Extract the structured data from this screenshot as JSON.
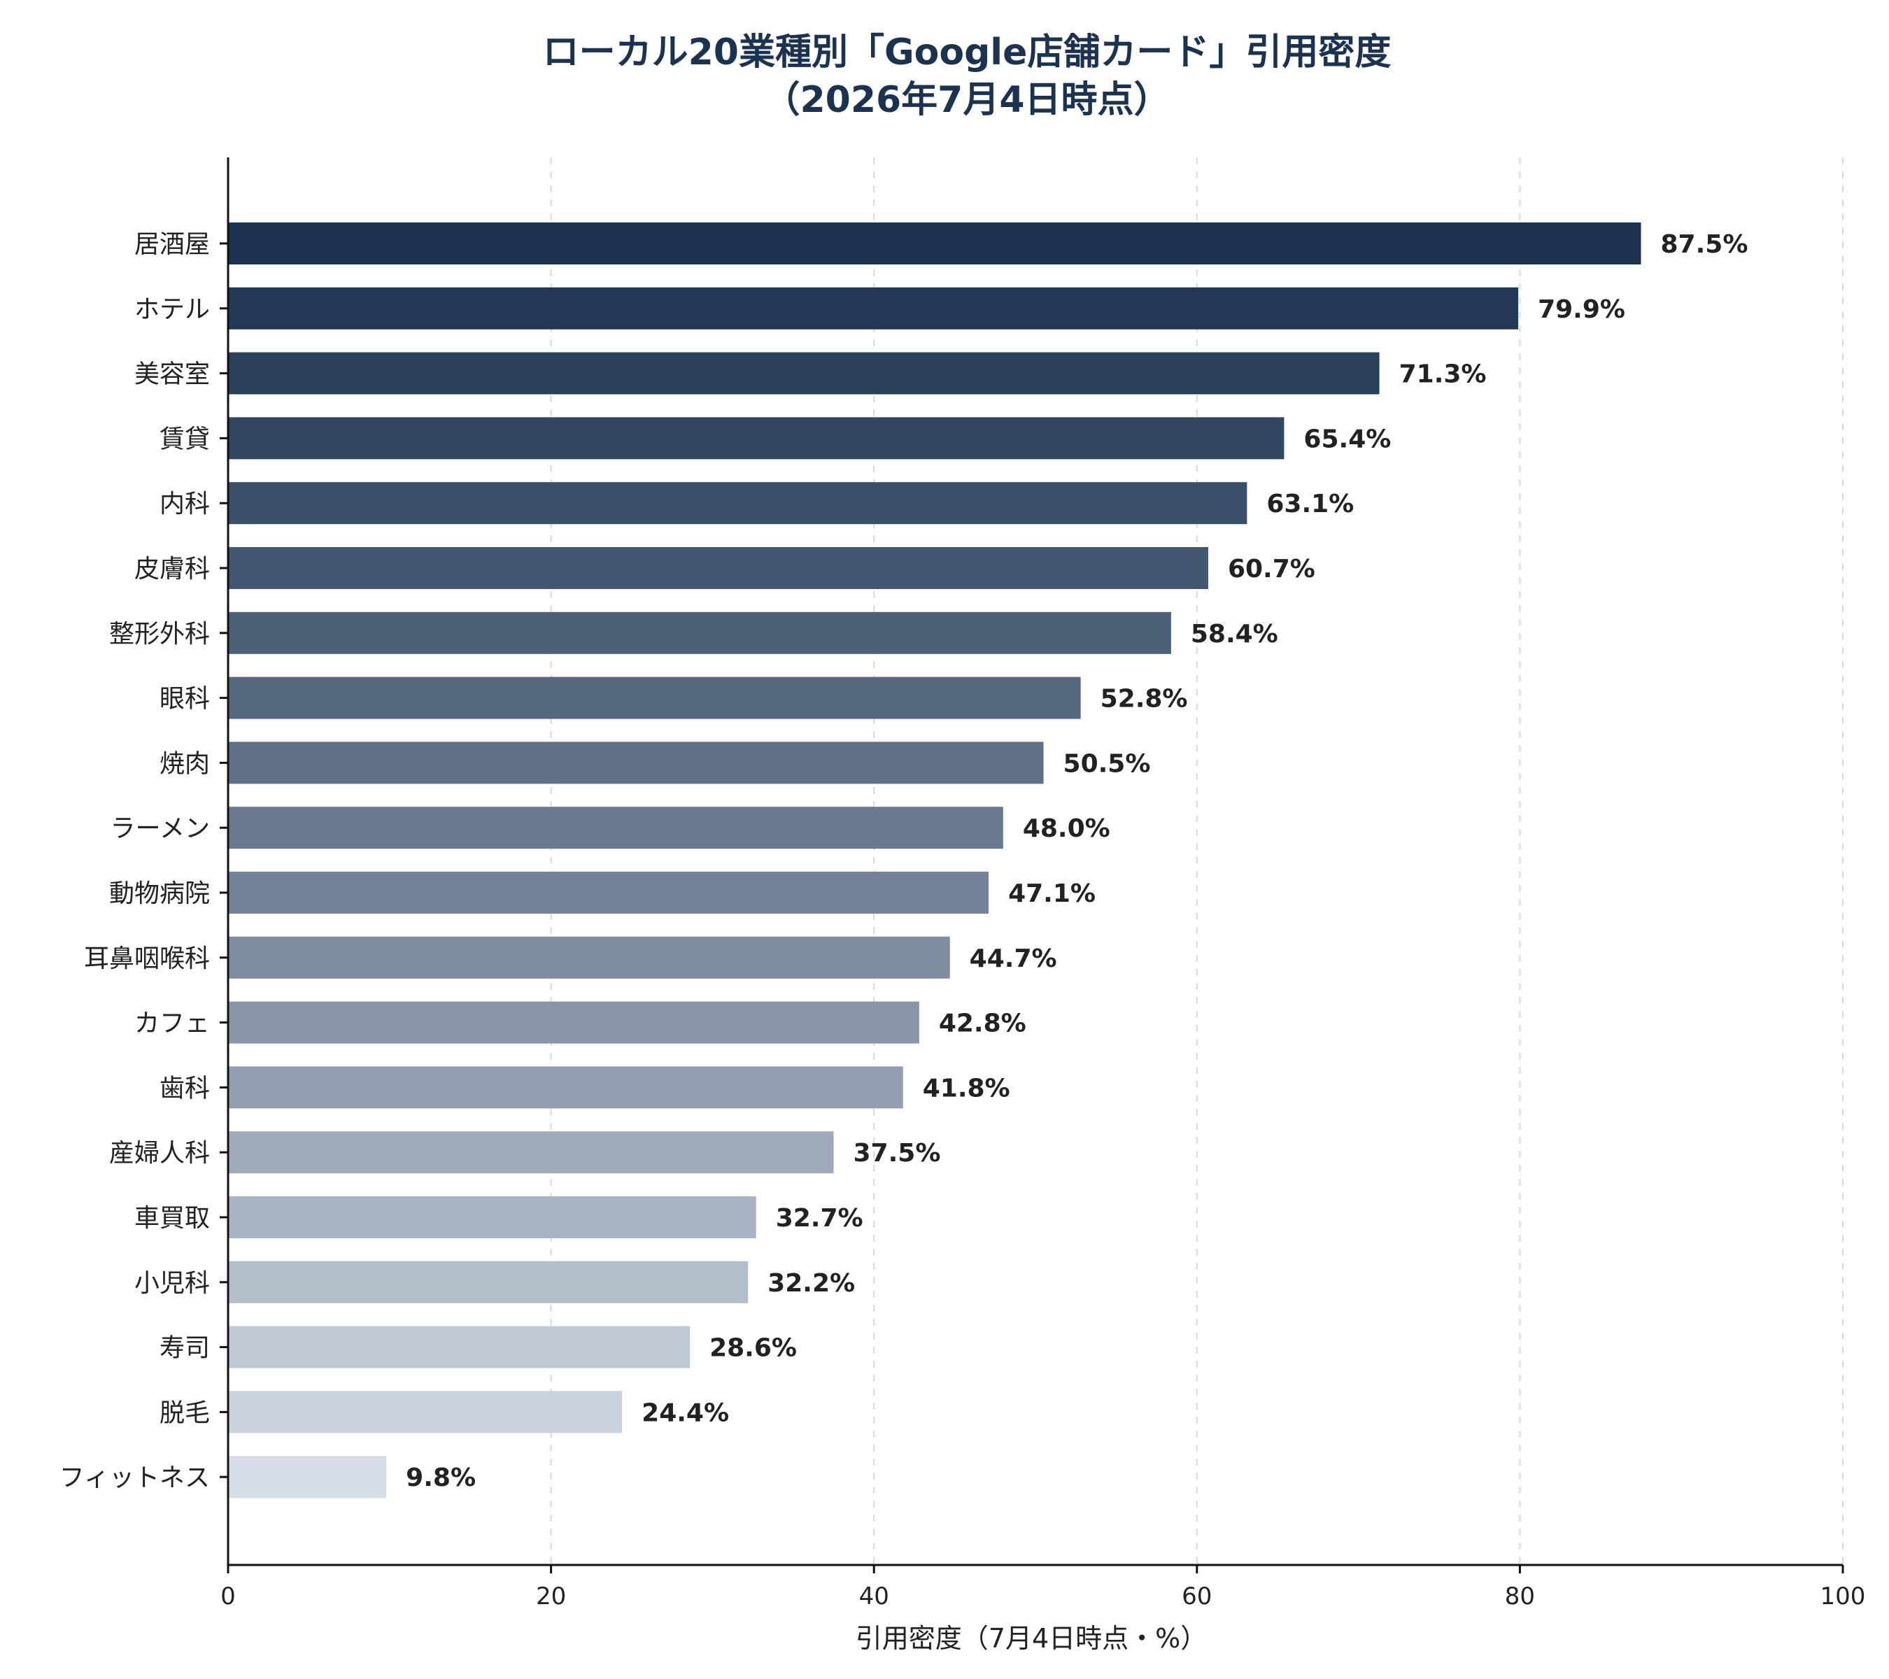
{
  "chart_data": {
    "type": "bar",
    "orientation": "horizontal",
    "title": "ローカル20業種別「Google店舗カード」引用密度",
    "subtitle": "（2026年7月4日時点）",
    "xlabel": "引用密度（7月4日時点・%）",
    "ylabel": "",
    "xlim": [
      0,
      100
    ],
    "xticks": [
      0,
      20,
      40,
      60,
      80,
      100
    ],
    "grid": true,
    "legend": "none",
    "categories": [
      "居酒屋",
      "ホテル",
      "美容室",
      "賃貸",
      "内科",
      "皮膚科",
      "整形外科",
      "眼科",
      "焼肉",
      "ラーメン",
      "動物病院",
      "耳鼻咽喉科",
      "カフェ",
      "歯科",
      "産婦人科",
      "車買取",
      "小児科",
      "寿司",
      "脱毛",
      "フィットネス"
    ],
    "values": [
      87.5,
      79.9,
      71.3,
      65.4,
      63.1,
      60.7,
      58.4,
      52.8,
      50.5,
      48.0,
      47.1,
      44.7,
      42.8,
      41.8,
      37.5,
      32.7,
      32.2,
      28.6,
      24.4,
      9.8
    ],
    "value_labels": [
      "87.5%",
      "79.9%",
      "71.3%",
      "65.4%",
      "63.1%",
      "60.7%",
      "58.4%",
      "52.8%",
      "50.5%",
      "48.0%",
      "47.1%",
      "44.7%",
      "42.8%",
      "41.8%",
      "37.5%",
      "32.7%",
      "32.2%",
      "28.6%",
      "24.4%",
      "9.8%"
    ],
    "colors": {
      "bar_dark": "#1b3350",
      "bar_light": "#d5dce6",
      "title": "#1b3350",
      "grid": "#d9d9d9",
      "text": "#222222"
    }
  }
}
